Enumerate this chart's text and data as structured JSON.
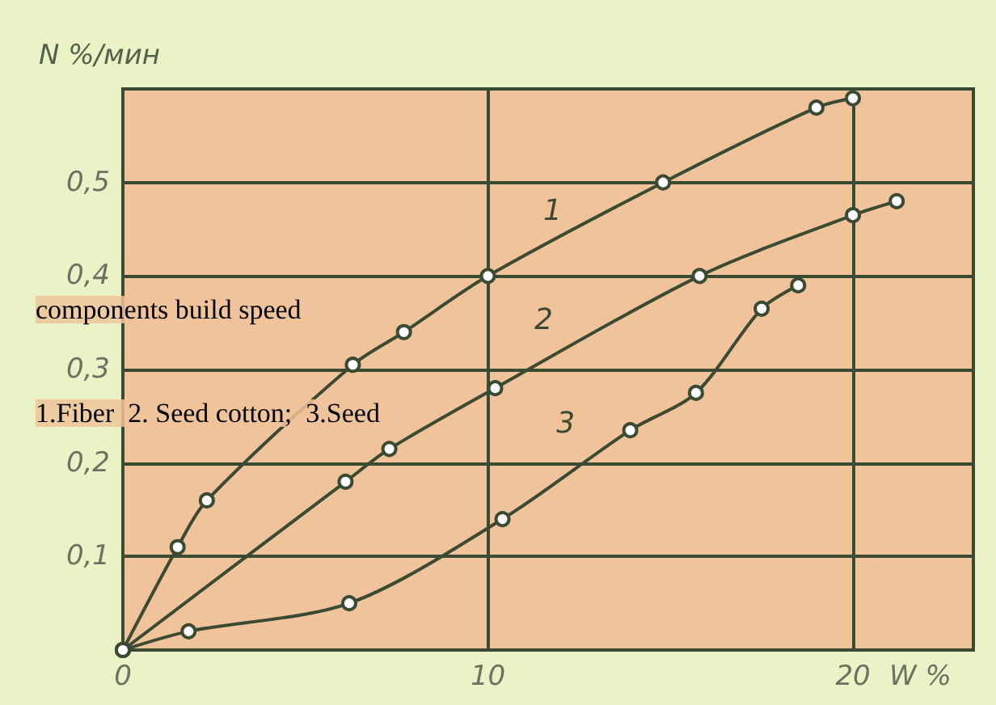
{
  "chart_data": {
    "type": "line",
    "xlabel": "W %",
    "ylabel": "N %/мин",
    "annotations": [
      "components build speed",
      "$^{}$1.Fiber  2. Seed cotton;  3.Seed"
    ],
    "xlim": [
      0,
      23.3
    ],
    "xticks": [
      0,
      10,
      20
    ],
    "ylim": [
      0,
      0.6
    ],
    "yticks": [
      {
        "value": 0,
        "label": null
      },
      {
        "value": 0.1,
        "label": "0,1"
      },
      {
        "value": 0.2,
        "label": "0,2"
      },
      {
        "value": 0.3,
        "label": "0,3"
      },
      {
        "value": 0.4,
        "label": "0,4"
      },
      {
        "value": 0.5,
        "label": "0,5"
      }
    ],
    "grid": true,
    "legend": false,
    "marker": "circle",
    "line_style": "solid",
    "series": [
      {
        "name": "1",
        "color": "#3b4a33",
        "x": [
          0,
          1.5,
          2.3,
          6.3,
          7.7,
          10.0,
          14.8,
          19.0,
          20.0
        ],
        "values": [
          0,
          0.11,
          0.16,
          0.305,
          0.34,
          0.4,
          0.5,
          0.58,
          0.59
        ]
      },
      {
        "name": "2",
        "color": "#3b4a33",
        "x": [
          0,
          6.1,
          7.3,
          10.2,
          15.8,
          20.0,
          21.2
        ],
        "values": [
          0,
          0.18,
          0.215,
          0.28,
          0.4,
          0.465,
          0.48
        ]
      },
      {
        "name": "3",
        "color": "#3b4a33",
        "x": [
          0,
          1.8,
          6.2,
          10.4,
          13.9,
          15.7,
          17.5,
          18.5
        ],
        "values": [
          0,
          0.02,
          0.05,
          0.14,
          0.235,
          0.275,
          0.365,
          0.39
        ]
      }
    ]
  }
}
